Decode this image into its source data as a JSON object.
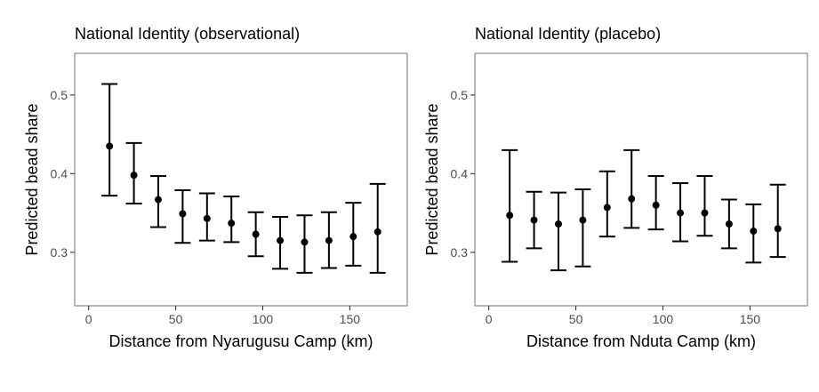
{
  "chart_data": [
    {
      "type": "scatter",
      "title": "National Identity (observational)",
      "xlabel": "Distance from Nyarugusu Camp (km)",
      "ylabel": "Predicted bead share",
      "xlim": [
        -8,
        183
      ],
      "ylim": [
        0.232,
        0.553
      ],
      "xticks": [
        0,
        50,
        100,
        150
      ],
      "yticks": [
        0.3,
        0.4,
        0.5
      ],
      "xtick_labels": [
        "0",
        "50",
        "100",
        "150"
      ],
      "ytick_labels": [
        "0.3",
        "0.4",
        "0.5"
      ],
      "grid": false,
      "points": [
        {
          "x": 12,
          "y": 0.435,
          "lower": 0.372,
          "upper": 0.514
        },
        {
          "x": 26,
          "y": 0.398,
          "lower": 0.362,
          "upper": 0.439
        },
        {
          "x": 40,
          "y": 0.367,
          "lower": 0.332,
          "upper": 0.397
        },
        {
          "x": 54,
          "y": 0.349,
          "lower": 0.312,
          "upper": 0.379
        },
        {
          "x": 68,
          "y": 0.343,
          "lower": 0.315,
          "upper": 0.375
        },
        {
          "x": 82,
          "y": 0.337,
          "lower": 0.313,
          "upper": 0.371
        },
        {
          "x": 96,
          "y": 0.323,
          "lower": 0.295,
          "upper": 0.351
        },
        {
          "x": 110,
          "y": 0.315,
          "lower": 0.279,
          "upper": 0.345
        },
        {
          "x": 124,
          "y": 0.313,
          "lower": 0.274,
          "upper": 0.347
        },
        {
          "x": 138,
          "y": 0.315,
          "lower": 0.28,
          "upper": 0.351
        },
        {
          "x": 152,
          "y": 0.32,
          "lower": 0.283,
          "upper": 0.363
        },
        {
          "x": 166,
          "y": 0.326,
          "lower": 0.274,
          "upper": 0.387
        }
      ]
    },
    {
      "type": "scatter",
      "title": "National Identity (placebo)",
      "xlabel": "Distance from Nduta Camp (km)",
      "ylabel": "Predicted bead share",
      "xlim": [
        -8,
        183
      ],
      "ylim": [
        0.232,
        0.553
      ],
      "xticks": [
        0,
        50,
        100,
        150
      ],
      "yticks": [
        0.3,
        0.4,
        0.5
      ],
      "xtick_labels": [
        "0",
        "50",
        "100",
        "150"
      ],
      "ytick_labels": [
        "0.3",
        "0.4",
        "0.5"
      ],
      "grid": false,
      "points": [
        {
          "x": 12,
          "y": 0.347,
          "lower": 0.288,
          "upper": 0.43
        },
        {
          "x": 26,
          "y": 0.341,
          "lower": 0.305,
          "upper": 0.377
        },
        {
          "x": 40,
          "y": 0.336,
          "lower": 0.277,
          "upper": 0.376
        },
        {
          "x": 54,
          "y": 0.341,
          "lower": 0.282,
          "upper": 0.38
        },
        {
          "x": 68,
          "y": 0.357,
          "lower": 0.32,
          "upper": 0.403
        },
        {
          "x": 82,
          "y": 0.368,
          "lower": 0.331,
          "upper": 0.43
        },
        {
          "x": 96,
          "y": 0.36,
          "lower": 0.329,
          "upper": 0.397
        },
        {
          "x": 110,
          "y": 0.35,
          "lower": 0.314,
          "upper": 0.388
        },
        {
          "x": 124,
          "y": 0.35,
          "lower": 0.321,
          "upper": 0.397
        },
        {
          "x": 138,
          "y": 0.336,
          "lower": 0.305,
          "upper": 0.367
        },
        {
          "x": 152,
          "y": 0.327,
          "lower": 0.287,
          "upper": 0.361
        },
        {
          "x": 166,
          "y": 0.33,
          "lower": 0.294,
          "upper": 0.386
        }
      ]
    }
  ]
}
